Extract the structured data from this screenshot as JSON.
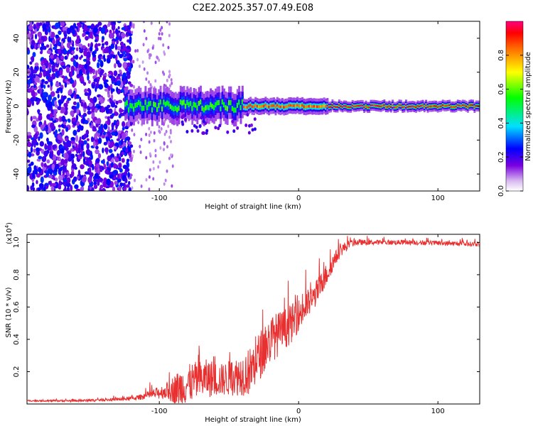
{
  "title": "C2E2.2025.357.07.49.E08",
  "chart_data": [
    {
      "type": "heatmap",
      "title": "C2E2.2025.357.07.49.E08",
      "xlabel": "Height of straight line (km)",
      "ylabel": "Frequency (Hz)",
      "xlim": [
        -195,
        130
      ],
      "ylim": [
        -50,
        50
      ],
      "x_ticks": [
        -100,
        0,
        100
      ],
      "x_tick_labels": [
        "-100",
        "0",
        "100"
      ],
      "y_ticks": [
        40,
        20,
        0,
        -20,
        -40
      ],
      "y_tick_labels": [
        "40",
        "20",
        "0",
        "-20",
        "-40"
      ],
      "signal_band": {
        "center_frequency_hz": 0,
        "segments": [
          {
            "x_start": -125,
            "x_end": -40,
            "half_width_hz": 6,
            "peak_amplitude": 0.6
          },
          {
            "x_start": -40,
            "x_end": 20,
            "half_width_hz": 3,
            "peak_amplitude": 0.9
          },
          {
            "x_start": 20,
            "x_end": 130,
            "half_width_hz": 2,
            "peak_amplitude": 1.0
          }
        ],
        "noise_region_x": [
          -195,
          -120
        ]
      },
      "colorbar": {
        "label": "Normalized spectral amplitude",
        "min": 0.0,
        "max": 1.0,
        "ticks": [
          0.0,
          0.2,
          0.4,
          0.6,
          0.8
        ],
        "tick_labels": [
          "0.0",
          "0.2",
          "0.4",
          "0.6",
          "0.8"
        ]
      }
    },
    {
      "type": "line",
      "xlabel": "Height of straight line (km)",
      "ylabel": "SNR (10 * v/v)",
      "multiplier_label": "(x10",
      "multiplier_exponent": "4",
      "xlim": [
        -195,
        130
      ],
      "ylim": [
        0,
        1.05
      ],
      "x_ticks": [
        -100,
        0,
        100
      ],
      "x_tick_labels": [
        "-100",
        "0",
        "100"
      ],
      "y_ticks": [
        0.2,
        0.4,
        0.6,
        0.8,
        1.0
      ],
      "y_tick_labels": [
        "0.2",
        "0.4",
        "0.6",
        "0.8",
        "1.0"
      ],
      "series": [
        {
          "name": "SNR",
          "color": "#e83030",
          "x": [
            -195,
            -180,
            -160,
            -140,
            -125,
            -115,
            -105,
            -95,
            -85,
            -75,
            -65,
            -55,
            -45,
            -35,
            -28,
            -20,
            -12,
            -5,
            0,
            5,
            10,
            15,
            20,
            25,
            30,
            35,
            40,
            50,
            60,
            80,
            100,
            120,
            130
          ],
          "y": [
            0.02,
            0.02,
            0.02,
            0.025,
            0.03,
            0.04,
            0.06,
            0.08,
            0.1,
            0.14,
            0.16,
            0.15,
            0.17,
            0.2,
            0.3,
            0.4,
            0.45,
            0.5,
            0.55,
            0.6,
            0.65,
            0.72,
            0.8,
            0.88,
            0.95,
            0.98,
            1.0,
            1.0,
            1.0,
            1.0,
            0.995,
            0.99,
            0.99
          ],
          "noise_amplitude": [
            0.005,
            0.005,
            0.006,
            0.008,
            0.01,
            0.015,
            0.03,
            0.05,
            0.12,
            0.12,
            0.12,
            0.1,
            0.12,
            0.15,
            0.15,
            0.15,
            0.13,
            0.12,
            0.1,
            0.1,
            0.08,
            0.08,
            0.07,
            0.05,
            0.04,
            0.03,
            0.02,
            0.015,
            0.015,
            0.015,
            0.015,
            0.015,
            0.015
          ]
        }
      ]
    }
  ]
}
